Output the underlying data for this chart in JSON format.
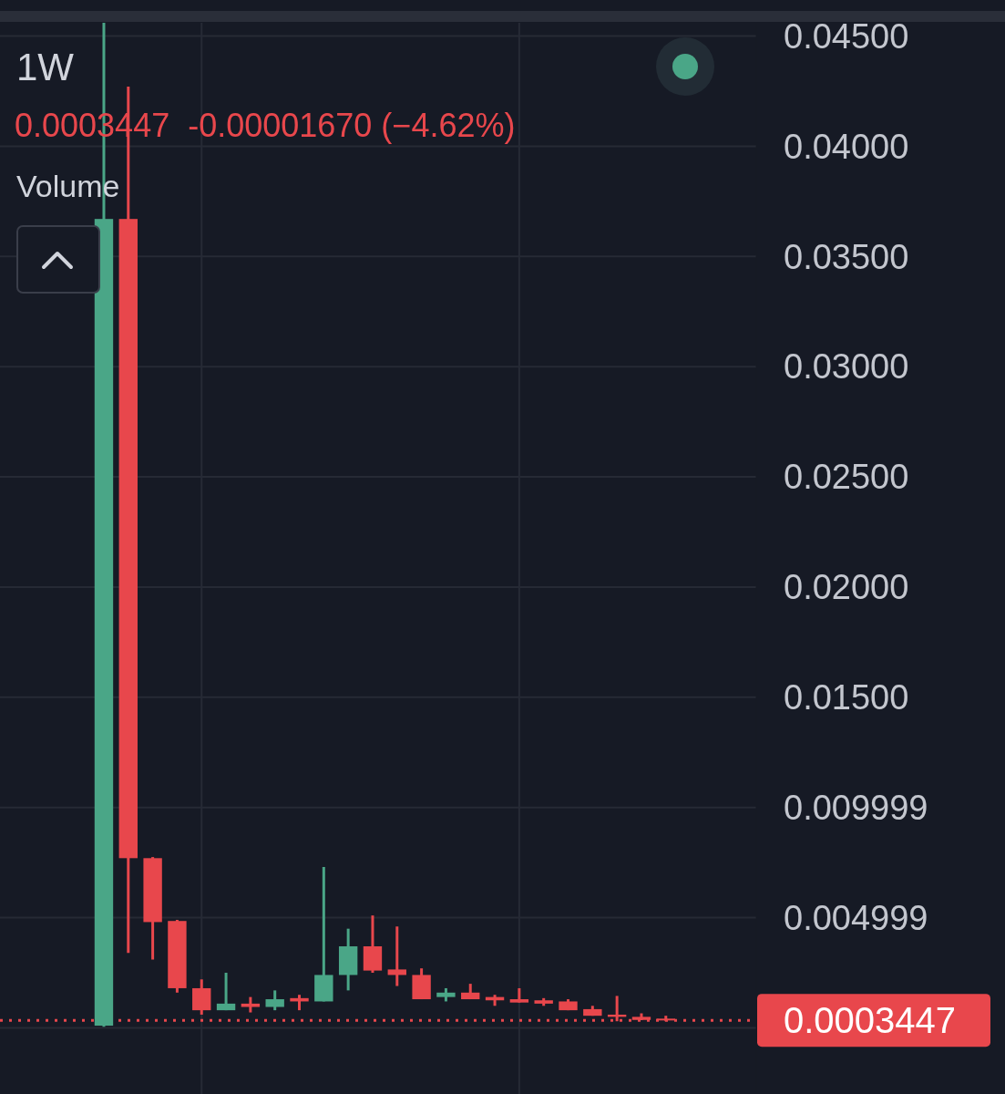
{
  "chart_data": {
    "type": "candlestick",
    "title": "1W",
    "subtitle": "0.0003447  -0.00001670 (−4.62%)",
    "annotations": [
      "Volume"
    ],
    "categories": [
      null,
      null,
      null,
      null,
      null,
      null,
      null,
      null,
      null,
      null,
      null,
      null,
      null,
      null,
      null,
      null,
      null,
      null,
      null,
      null,
      null,
      null,
      null,
      null
    ],
    "ohlc": [
      [
        0.0001,
        0.0456,
        5e-05,
        0.0367
      ],
      [
        0.0367,
        0.0427,
        0.0034,
        0.0077
      ],
      [
        0.0077,
        0.00775,
        0.0031,
        0.0048
      ],
      [
        0.00485,
        0.0049,
        0.0016,
        0.0018
      ],
      [
        0.0018,
        0.0022,
        0.0006,
        0.0008
      ],
      [
        0.0008,
        0.0025,
        0.0008,
        0.0011
      ],
      [
        0.0011,
        0.0014,
        0.0007,
        0.00095
      ],
      [
        0.00095,
        0.0017,
        0.0008,
        0.0013
      ],
      [
        0.00135,
        0.0015,
        0.0008,
        0.0012
      ],
      [
        0.0012,
        0.0073,
        0.0012,
        0.0024
      ],
      [
        0.0024,
        0.0045,
        0.0017,
        0.0037
      ],
      [
        0.0037,
        0.0051,
        0.0025,
        0.0026
      ],
      [
        0.00265,
        0.0046,
        0.0019,
        0.0024
      ],
      [
        0.0024,
        0.0027,
        0.0013,
        0.0013
      ],
      [
        0.0014,
        0.0018,
        0.0012,
        0.0016
      ],
      [
        0.0016,
        0.002,
        0.0013,
        0.0013
      ],
      [
        0.0014,
        0.0015,
        0.001,
        0.00125
      ],
      [
        0.0013,
        0.0018,
        0.00115,
        0.00115
      ],
      [
        0.00125,
        0.00135,
        0.001,
        0.0011
      ],
      [
        0.0012,
        0.0013,
        0.0008,
        0.0008
      ],
      [
        0.00085,
        0.001,
        0.00055,
        0.00055
      ],
      [
        0.0006,
        0.00145,
        0.0003,
        0.0005
      ],
      [
        0.0005,
        0.00066,
        0.00035,
        0.00036
      ],
      [
        0.00042,
        0.00055,
        0.0003,
        0.0003447
      ]
    ],
    "colors": [
      "#4aa687",
      "#e8474c",
      "#e8474c",
      "#e8474c",
      "#e8474c",
      "#4aa687",
      "#e8474c",
      "#4aa687",
      "#e8474c",
      "#4aa687",
      "#4aa687",
      "#e8474c",
      "#e8474c",
      "#e8474c",
      "#4aa687",
      "#e8474c",
      "#e8474c",
      "#e8474c",
      "#e8474c",
      "#e8474c",
      "#e8474c",
      "#e8474c",
      "#e8474c",
      "#e8474c"
    ],
    "ylim": [
      -0.003,
      0.0456
    ],
    "yticks": [
      {
        "value": 0,
        "label": null
      },
      {
        "value": 0.004999,
        "label": "0.004999"
      },
      {
        "value": 0.009999,
        "label": "0.009999"
      },
      {
        "value": 0.015,
        "label": "0.01500"
      },
      {
        "value": 0.02,
        "label": "0.02000"
      },
      {
        "value": 0.025,
        "label": "0.02500"
      },
      {
        "value": 0.03,
        "label": "0.03000"
      },
      {
        "value": 0.035,
        "label": "0.03500"
      },
      {
        "value": 0.04,
        "label": "0.04000"
      },
      {
        "value": 0.045,
        "label": "0.04500"
      }
    ],
    "grid": true,
    "ref_lines": [
      {
        "axis": "y",
        "value": 0.0003447,
        "label": "0.0003447",
        "color": "#e8474c",
        "line_style": "dotted"
      }
    ]
  }
}
